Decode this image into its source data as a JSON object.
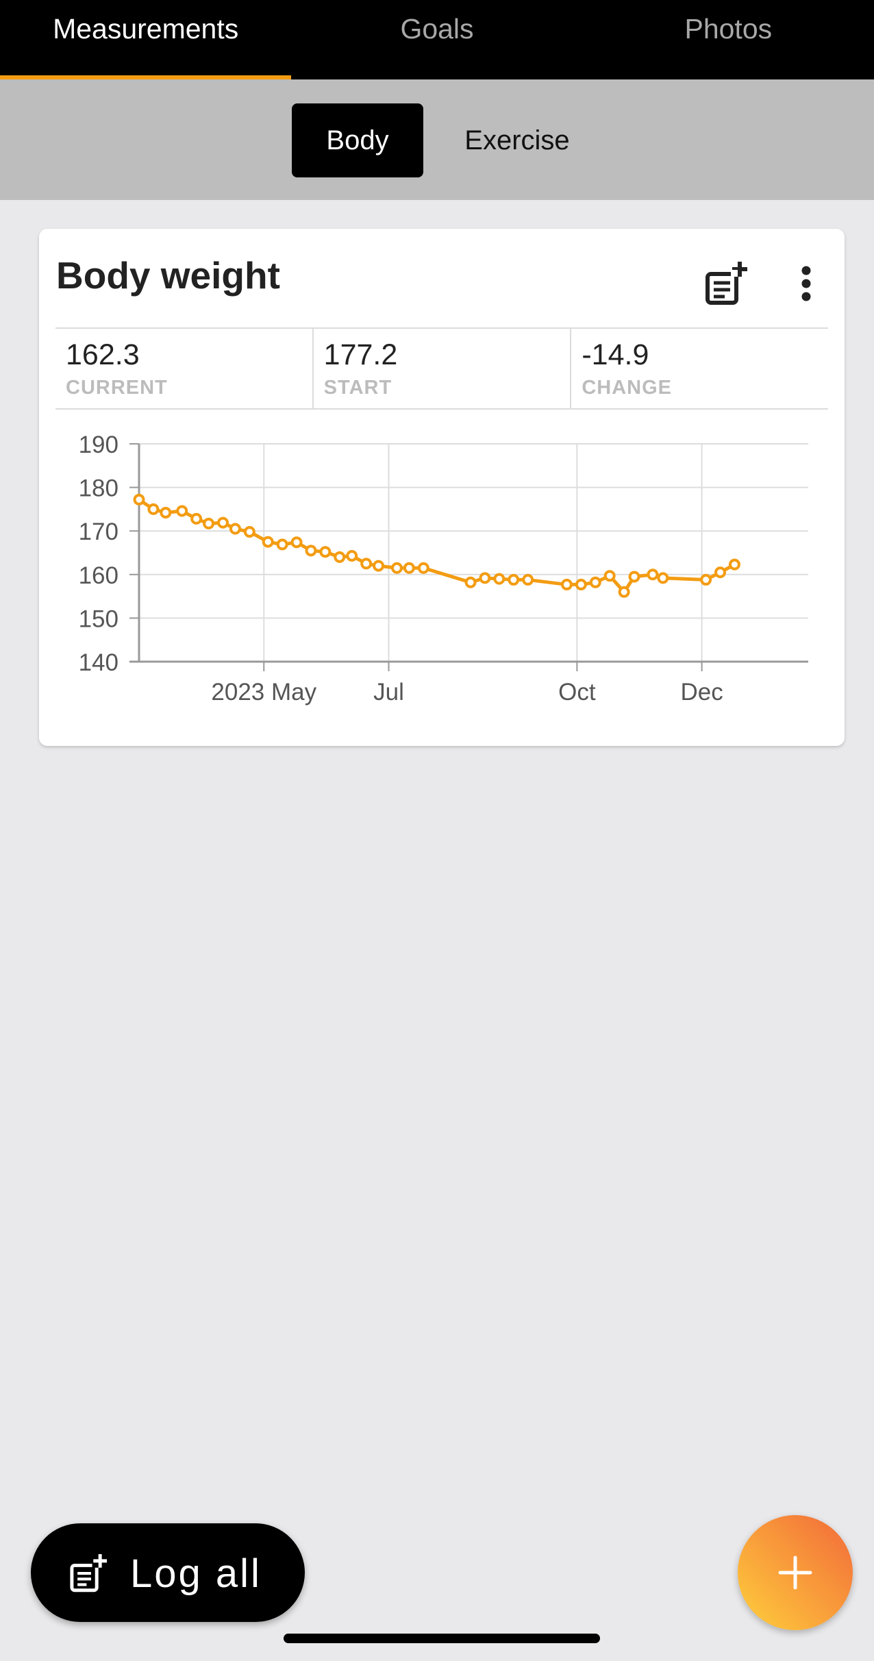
{
  "top_tabs": [
    {
      "label": "Measurements",
      "active": true
    },
    {
      "label": "Goals",
      "active": false
    },
    {
      "label": "Photos",
      "active": false
    }
  ],
  "segments": [
    {
      "label": "Body",
      "active": true
    },
    {
      "label": "Exercise",
      "active": false
    }
  ],
  "card": {
    "title": "Body weight",
    "icons": [
      "add-entry-icon",
      "more-vert-icon"
    ],
    "stats": [
      {
        "value": "162.3",
        "label": "CURRENT"
      },
      {
        "value": "177.2",
        "label": "START"
      },
      {
        "value": "-14.9",
        "label": "CHANGE"
      }
    ]
  },
  "chart_data": {
    "type": "line",
    "title": "",
    "xlabel": "",
    "ylabel": "",
    "ylim": [
      140,
      190
    ],
    "yticks": [
      190,
      180,
      170,
      160,
      150,
      140
    ],
    "xlim": [
      "2023-03-01",
      "2024-01-22"
    ],
    "xticks": [
      {
        "label": "2023 May",
        "x": "2023-05-01"
      },
      {
        "label": "Jul",
        "x": "2023-07-01"
      },
      {
        "label": "Oct",
        "x": "2023-10-01"
      },
      {
        "label": "Dec",
        "x": "2023-12-01"
      }
    ],
    "grid": true,
    "color": "#f39c12",
    "series": [
      {
        "points": [
          [
            "2023-03-01",
            177.2
          ],
          [
            "2023-03-08",
            175.0
          ],
          [
            "2023-03-14",
            174.2
          ],
          [
            "2023-03-22",
            174.6
          ],
          [
            "2023-03-29",
            172.8
          ],
          [
            "2023-04-04",
            171.7
          ],
          [
            "2023-04-11",
            171.9
          ],
          [
            "2023-04-17",
            170.5
          ],
          [
            "2023-04-24",
            169.8
          ],
          [
            "2023-05-03",
            167.5
          ],
          [
            "2023-05-10",
            166.9
          ],
          [
            "2023-05-17",
            167.4
          ],
          [
            "2023-05-24",
            165.5
          ],
          [
            "2023-05-31",
            165.2
          ],
          [
            "2023-06-07",
            164.0
          ],
          [
            "2023-06-13",
            164.3
          ],
          [
            "2023-06-20",
            162.5
          ],
          [
            "2023-06-26",
            162.0
          ],
          [
            "2023-07-05",
            161.5
          ],
          [
            "2023-07-11",
            161.5
          ],
          [
            "2023-07-18",
            161.5
          ],
          [
            "2023-08-10",
            158.2
          ],
          [
            "2023-08-17",
            159.2
          ],
          [
            "2023-08-24",
            159.0
          ],
          [
            "2023-08-31",
            158.8
          ],
          [
            "2023-09-07",
            158.8
          ],
          [
            "2023-09-26",
            157.7
          ],
          [
            "2023-10-03",
            157.7
          ],
          [
            "2023-10-10",
            158.2
          ],
          [
            "2023-10-17",
            159.7
          ],
          [
            "2023-10-24",
            156.0
          ],
          [
            "2023-10-29",
            159.5
          ],
          [
            "2023-11-07",
            160.0
          ],
          [
            "2023-11-12",
            159.2
          ],
          [
            "2023-12-03",
            158.8
          ],
          [
            "2023-12-10",
            160.5
          ],
          [
            "2023-12-17",
            162.3
          ]
        ]
      }
    ]
  },
  "actions": {
    "log_all_label": "Log all"
  }
}
